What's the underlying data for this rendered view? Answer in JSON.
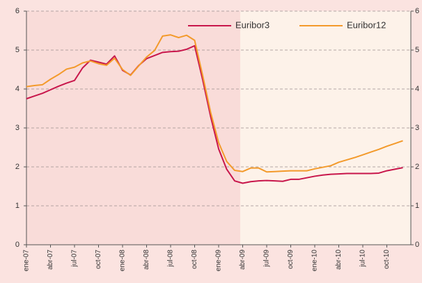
{
  "chart_data": {
    "type": "line",
    "categories": [
      "ene-07",
      null,
      null,
      "abr-07",
      null,
      null,
      "jul-07",
      null,
      null,
      "oct-07",
      null,
      null,
      "ene-08",
      null,
      null,
      "abr-08",
      null,
      null,
      "jul-08",
      null,
      null,
      "oct-08",
      null,
      null,
      "ene-09",
      null,
      null,
      "abr-09",
      null,
      null,
      "jul-09",
      null,
      null,
      "oct-09",
      null,
      null,
      "ene-10",
      null,
      null,
      "abr-10",
      null,
      null,
      "jul-10",
      null,
      null,
      "oct-10",
      null,
      null
    ],
    "series": [
      {
        "name": "Euribor3",
        "color": "#c8164b",
        "values": [
          3.75,
          3.82,
          3.89,
          3.98,
          4.07,
          4.15,
          4.22,
          4.54,
          4.74,
          4.69,
          4.64,
          4.85,
          4.48,
          4.36,
          4.6,
          4.78,
          4.86,
          4.94,
          4.96,
          4.97,
          5.02,
          5.11,
          4.24,
          3.29,
          2.46,
          1.94,
          1.64,
          1.58,
          1.62,
          1.64,
          1.65,
          1.64,
          1.63,
          1.68,
          1.68,
          1.72,
          1.76,
          1.79,
          1.81,
          1.82,
          1.83,
          1.83,
          1.83,
          1.83,
          1.84,
          1.9,
          1.94,
          1.98
        ]
      },
      {
        "name": "Euribor12",
        "color": "#f39a2b",
        "values": [
          4.06,
          4.09,
          4.11,
          4.25,
          4.37,
          4.51,
          4.56,
          4.67,
          4.72,
          4.65,
          4.61,
          4.79,
          4.5,
          4.35,
          4.59,
          4.82,
          4.99,
          5.36,
          5.39,
          5.32,
          5.38,
          5.25,
          4.35,
          3.4,
          2.62,
          2.14,
          1.91,
          1.88,
          1.97,
          1.97,
          1.87,
          1.88,
          1.89,
          1.9,
          1.9,
          1.9,
          1.95,
          1.99,
          2.03,
          2.12,
          2.18,
          2.24,
          2.31,
          2.38,
          2.45,
          2.53,
          2.6,
          2.67
        ]
      }
    ],
    "ylim": [
      0,
      6
    ],
    "yticks": [
      0,
      1,
      2,
      3,
      4,
      5,
      6
    ],
    "grid": true,
    "legend": "top"
  }
}
